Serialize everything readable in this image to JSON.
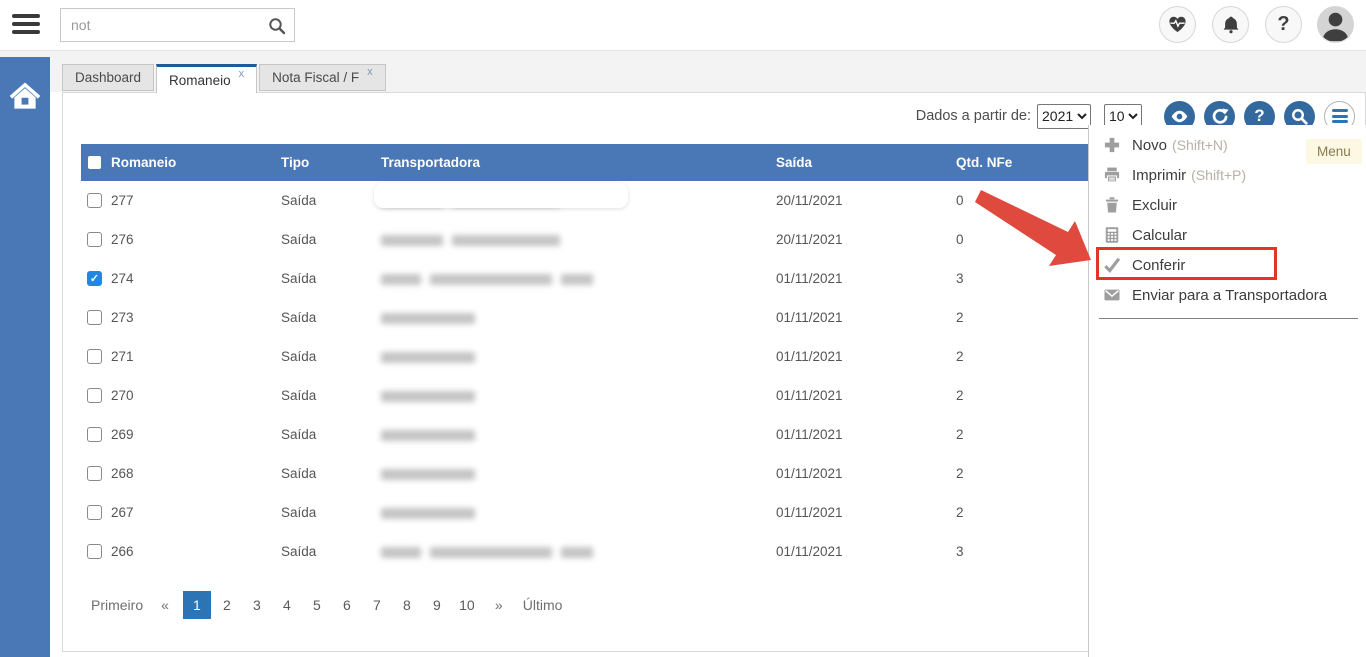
{
  "topbar": {
    "search": {
      "value": "not"
    },
    "icons": {
      "hamburger": "menu-icon",
      "health": "heart-pulse-icon",
      "notifications": "bell-icon",
      "help": "?",
      "avatar": "user-avatar-icon"
    }
  },
  "tabs": [
    {
      "label": "Dashboard",
      "active": false,
      "closable": false
    },
    {
      "label": "Romaneio",
      "active": true,
      "closable": true
    },
    {
      "label": "Nota Fiscal / F",
      "active": false,
      "closable": true
    }
  ],
  "toolbar": {
    "filter_label": "Dados a partir de:",
    "year_value": "2021",
    "page_size_value": "10",
    "action_icons": [
      "eye-icon",
      "refresh-icon",
      "help-icon",
      "search-icon",
      "menu-toggle-icon"
    ],
    "help_glyph": "?"
  },
  "context_menu": {
    "tooltip": "Menu",
    "items": [
      {
        "icon": "plus-icon",
        "label": "Novo",
        "shortcut": "(Shift+N)",
        "highlighted": false
      },
      {
        "icon": "printer-icon",
        "label": "Imprimir",
        "shortcut": "(Shift+P)",
        "highlighted": false
      },
      {
        "icon": "trash-icon",
        "label": "Excluir",
        "shortcut": "",
        "highlighted": false
      },
      {
        "icon": "calculator-icon",
        "label": "Calcular",
        "shortcut": "",
        "highlighted": false
      },
      {
        "icon": "check-icon",
        "label": "Conferir",
        "shortcut": "",
        "highlighted": true
      },
      {
        "icon": "envelope-icon",
        "label": "Enviar para a Transportadora",
        "shortcut": "",
        "highlighted": false
      }
    ]
  },
  "table": {
    "columns": [
      "Romaneio",
      "Tipo",
      "Transportadora",
      "Saída",
      "Qtd. NFe"
    ],
    "rows": [
      {
        "romaneio": "277",
        "tipo": "Saída",
        "redacted_segments": [
          62,
          108
        ],
        "saida": "20/11/2021",
        "qtd_nfe": "0",
        "checked": false,
        "highlight_pill": true
      },
      {
        "romaneio": "276",
        "tipo": "Saída",
        "redacted_segments": [
          62,
          108
        ],
        "saida": "20/11/2021",
        "qtd_nfe": "0",
        "checked": false,
        "highlight_pill": false
      },
      {
        "romaneio": "274",
        "tipo": "Saída",
        "redacted_segments": [
          40,
          122,
          32
        ],
        "saida": "01/11/2021",
        "qtd_nfe": "3",
        "checked": true,
        "highlight_pill": false
      },
      {
        "romaneio": "273",
        "tipo": "Saída",
        "redacted_segments": [
          94
        ],
        "saida": "01/11/2021",
        "qtd_nfe": "2",
        "checked": false,
        "highlight_pill": false
      },
      {
        "romaneio": "271",
        "tipo": "Saída",
        "redacted_segments": [
          94
        ],
        "saida": "01/11/2021",
        "qtd_nfe": "2",
        "checked": false,
        "highlight_pill": false
      },
      {
        "romaneio": "270",
        "tipo": "Saída",
        "redacted_segments": [
          94
        ],
        "saida": "01/11/2021",
        "qtd_nfe": "2",
        "checked": false,
        "highlight_pill": false
      },
      {
        "romaneio": "269",
        "tipo": "Saída",
        "redacted_segments": [
          94
        ],
        "saida": "01/11/2021",
        "qtd_nfe": "2",
        "checked": false,
        "highlight_pill": false
      },
      {
        "romaneio": "268",
        "tipo": "Saída",
        "redacted_segments": [
          94
        ],
        "saida": "01/11/2021",
        "qtd_nfe": "2",
        "checked": false,
        "highlight_pill": false
      },
      {
        "romaneio": "267",
        "tipo": "Saída",
        "redacted_segments": [
          94
        ],
        "saida": "01/11/2021",
        "qtd_nfe": "2",
        "checked": false,
        "highlight_pill": false
      },
      {
        "romaneio": "266",
        "tipo": "Saída",
        "redacted_segments": [
          40,
          122,
          32
        ],
        "saida": "01/11/2021",
        "qtd_nfe": "3",
        "checked": false,
        "highlight_pill": false
      }
    ]
  },
  "pagination": {
    "first_label": "Primeiro",
    "prev_label": "«",
    "pages": [
      "1",
      "2",
      "3",
      "4",
      "5",
      "6",
      "7",
      "8",
      "9",
      "10"
    ],
    "active_page": "1",
    "next_label": "»",
    "last_label": "Último"
  },
  "colors": {
    "accent_blue": "#4a77b5",
    "icon_circle_blue": "#34699e",
    "active_page_blue": "#2d74b5",
    "checked_checkbox_blue": "#1e88e5",
    "highlight_red": "#e23427",
    "tab_active_border": "#1e5c97",
    "tooltip_bg": "#fcf8e3"
  }
}
